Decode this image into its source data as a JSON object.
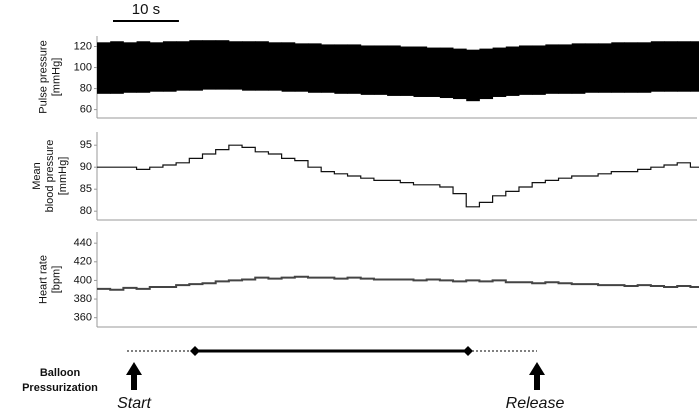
{
  "scale_bar": {
    "value": 10,
    "label": "10 s"
  },
  "chart_data": [
    {
      "type": "range",
      "ylabel": [
        "Pulse pressure",
        "[mmHg]"
      ],
      "x": [
        0,
        2,
        4,
        6,
        8,
        10,
        12,
        14,
        16,
        18,
        20,
        22,
        24,
        26,
        28,
        30,
        32,
        34,
        36,
        38,
        40,
        42,
        44,
        46,
        48,
        50,
        52,
        54,
        56,
        58,
        60,
        62,
        64,
        66,
        68,
        70,
        72,
        74,
        76,
        78,
        80,
        82,
        84,
        86,
        88,
        90
      ],
      "high": [
        124,
        125,
        124,
        125,
        124,
        125,
        125,
        126,
        126,
        126,
        125,
        125,
        125,
        124,
        124,
        123,
        123,
        122,
        122,
        122,
        121,
        121,
        121,
        120,
        120,
        119,
        119,
        118,
        117,
        118,
        119,
        120,
        121,
        121,
        122,
        122,
        123,
        123,
        123,
        124,
        124,
        124,
        125,
        125,
        125,
        125
      ],
      "low": [
        75,
        75,
        76,
        76,
        77,
        77,
        78,
        78,
        79,
        79,
        79,
        78,
        78,
        78,
        77,
        77,
        76,
        76,
        75,
        75,
        74,
        74,
        73,
        73,
        72,
        72,
        71,
        70,
        68,
        70,
        72,
        73,
        74,
        74,
        75,
        75,
        75,
        76,
        76,
        76,
        76,
        76,
        77,
        77,
        77,
        77
      ],
      "color": "#000000",
      "xlim": [
        0,
        91
      ],
      "ylim": [
        52,
        130
      ],
      "yticks": [
        60,
        80,
        100,
        120
      ]
    },
    {
      "type": "line",
      "ylabel": [
        "Mean",
        "blood pressure",
        "[mmHg]"
      ],
      "x": [
        0,
        2,
        4,
        6,
        8,
        10,
        12,
        14,
        16,
        18,
        20,
        22,
        24,
        26,
        28,
        30,
        32,
        34,
        36,
        38,
        40,
        42,
        44,
        46,
        48,
        50,
        52,
        54,
        56,
        58,
        60,
        62,
        64,
        66,
        68,
        70,
        72,
        74,
        76,
        78,
        80,
        82,
        84,
        86,
        88,
        90
      ],
      "values": [
        90,
        90,
        90,
        89.5,
        90,
        90.5,
        91,
        92,
        93,
        94,
        95,
        94.5,
        93.5,
        93,
        92,
        91.5,
        90,
        89,
        88.5,
        88,
        87.5,
        87,
        87,
        86.5,
        86,
        86,
        85.5,
        84,
        81,
        82,
        83.5,
        84.5,
        85.5,
        86.5,
        87,
        87.5,
        88,
        88,
        88.5,
        89,
        89,
        89.5,
        90,
        90.5,
        91,
        90
      ],
      "color": "#111111",
      "xlim": [
        0,
        91
      ],
      "ylim": [
        78,
        98
      ],
      "yticks": [
        80,
        85,
        90,
        95
      ]
    },
    {
      "type": "line",
      "ylabel": [
        "Heart rate",
        "[bpm]"
      ],
      "x": [
        0,
        2,
        4,
        6,
        8,
        10,
        12,
        14,
        16,
        18,
        20,
        22,
        24,
        26,
        28,
        30,
        32,
        34,
        36,
        38,
        40,
        42,
        44,
        46,
        48,
        50,
        52,
        54,
        56,
        58,
        60,
        62,
        64,
        66,
        68,
        70,
        72,
        74,
        76,
        78,
        80,
        82,
        84,
        86,
        88,
        90
      ],
      "values": [
        391,
        390,
        392,
        391,
        393,
        393,
        395,
        396,
        397,
        399,
        400,
        401,
        403,
        402,
        403,
        404,
        403,
        403,
        402,
        403,
        402,
        401,
        401,
        401,
        400,
        401,
        400,
        399,
        400,
        399,
        400,
        398,
        398,
        397,
        398,
        397,
        396,
        396,
        395,
        395,
        394,
        395,
        394,
        393,
        394,
        393
      ],
      "color": "#444444",
      "xlim": [
        0,
        91
      ],
      "ylim": [
        350,
        452
      ],
      "yticks": [
        360,
        380,
        400,
        420,
        440
      ]
    }
  ],
  "balloon": {
    "label": [
      "Balloon",
      "Pressurization"
    ],
    "start": "Start",
    "release": "Release"
  }
}
